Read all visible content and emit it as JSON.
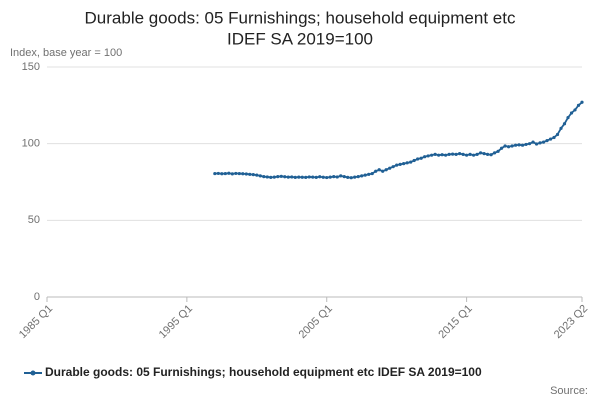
{
  "chart_data": {
    "type": "line",
    "title": [
      "Durable goods: 05 Furnishings; household equipment etc",
      "IDEF SA 2019=100"
    ],
    "y_label": "Index, base year = 100",
    "source": "Source:",
    "categories": [
      "1985 Q1",
      null,
      null,
      null,
      null,
      null,
      null,
      null,
      null,
      null,
      null,
      null,
      null,
      null,
      null,
      null,
      null,
      null,
      null,
      null,
      null,
      null,
      null,
      null,
      null,
      null,
      null,
      null,
      null,
      null,
      null,
      null,
      null,
      null,
      null,
      null,
      null,
      null,
      null,
      null,
      "1995 Q1",
      null,
      null,
      null,
      null,
      null,
      null,
      null,
      null,
      null,
      null,
      null,
      null,
      null,
      null,
      null,
      null,
      null,
      null,
      null,
      null,
      null,
      null,
      null,
      null,
      null,
      null,
      null,
      null,
      null,
      null,
      null,
      null,
      null,
      null,
      null,
      null,
      null,
      null,
      null,
      "2005 Q1",
      null,
      null,
      null,
      null,
      null,
      null,
      null,
      null,
      null,
      null,
      null,
      null,
      null,
      null,
      null,
      null,
      null,
      null,
      null,
      null,
      null,
      null,
      null,
      null,
      null,
      null,
      null,
      null,
      null,
      null,
      null,
      null,
      null,
      null,
      null,
      null,
      null,
      null,
      null,
      "2015 Q1",
      null,
      null,
      null,
      null,
      null,
      null,
      null,
      null,
      null,
      null,
      null,
      null,
      null,
      null,
      null,
      null,
      null,
      null,
      null,
      null,
      null,
      null,
      null,
      null,
      null,
      null,
      null,
      null,
      null,
      null,
      null,
      null,
      "2023 Q2"
    ],
    "series": [
      {
        "name": "Durable goods: 05 Furnishings; household equipment etc IDEF SA 2019=100",
        "color": "#206095",
        "values": [
          null,
          null,
          null,
          null,
          null,
          null,
          null,
          null,
          null,
          null,
          null,
          null,
          null,
          null,
          null,
          null,
          null,
          null,
          null,
          null,
          null,
          null,
          null,
          null,
          null,
          null,
          null,
          null,
          null,
          null,
          null,
          null,
          null,
          null,
          null,
          null,
          null,
          null,
          null,
          null,
          null,
          null,
          null,
          null,
          null,
          null,
          null,
          null,
          80.5,
          80.6,
          80.4,
          80.5,
          80.7,
          80.3,
          80.6,
          80.5,
          80.4,
          80.2,
          80,
          79.8,
          79.5,
          79,
          78.5,
          78.3,
          78,
          78.2,
          78.5,
          78.7,
          78.4,
          78.2,
          78.3,
          78,
          78.2,
          78.1,
          78,
          78.3,
          78.2,
          78,
          78.4,
          78.1,
          77.9,
          78.2,
          78.5,
          78.3,
          79,
          78.5,
          78,
          77.8,
          78.2,
          78.5,
          79,
          79.5,
          80,
          80.5,
          82,
          83,
          82,
          83,
          84,
          85,
          86,
          86.5,
          87,
          87.5,
          88,
          89,
          90,
          90.5,
          91.5,
          92,
          92.5,
          93,
          92.5,
          92.8,
          92.5,
          93,
          93.2,
          93,
          93.5,
          93,
          92.5,
          93,
          92.5,
          93,
          94,
          93.5,
          93,
          92.8,
          94,
          95,
          97,
          98.5,
          98,
          98.5,
          99,
          99.2,
          99,
          99.5,
          100,
          101,
          99.8,
          100.5,
          101,
          102,
          103,
          104,
          106,
          110,
          113,
          117,
          120,
          122,
          125,
          127
        ]
      }
    ],
    "ylim": [
      0,
      150
    ],
    "yticks": [
      0,
      50,
      100,
      150
    ],
    "grid": true
  }
}
